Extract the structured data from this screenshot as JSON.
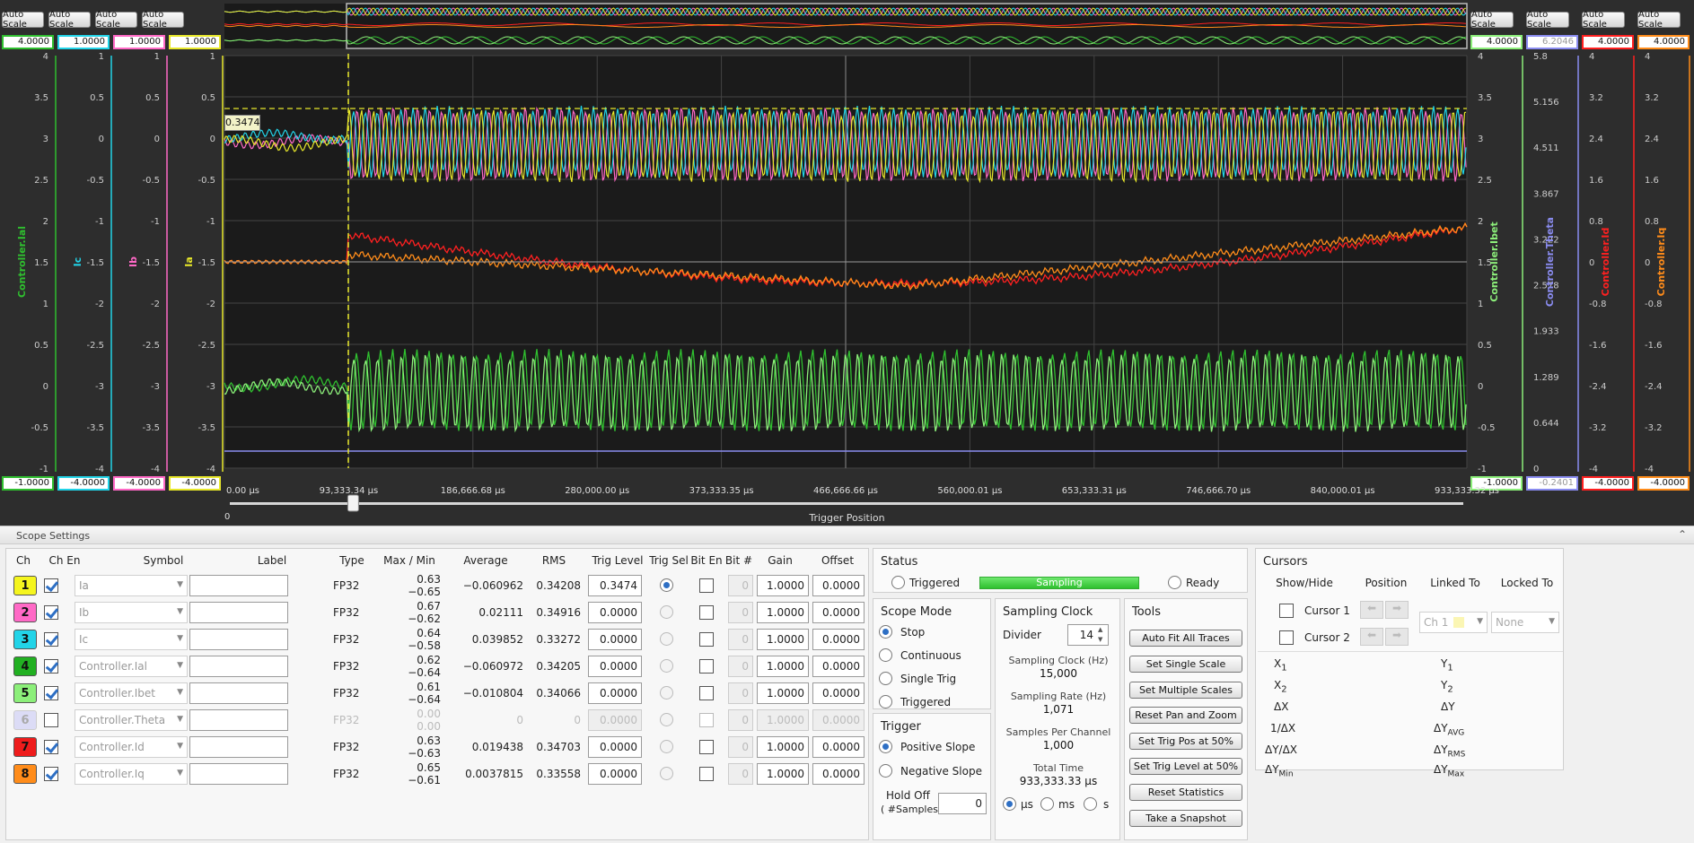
{
  "top": {
    "autoscale_label": "Auto Scale",
    "left_axes": [
      {
        "name": "Controller.Ial",
        "color": "#2fbf2f",
        "max": "4.0000",
        "min": "-1.0000",
        "ticks": [
          "4",
          "3.5",
          "3",
          "2.5",
          "2",
          "1.5",
          "1",
          "0.5",
          "0",
          "-0.5",
          "-1"
        ]
      },
      {
        "name": "Ic",
        "color": "#22d4e8",
        "max": "1.0000",
        "min": "-4.0000",
        "ticks": [
          "1",
          "0.5",
          "0",
          "-0.5",
          "-1",
          "-1.5",
          "-2",
          "-2.5",
          "-3",
          "-3.5",
          "-4"
        ]
      },
      {
        "name": "Ib",
        "color": "#ff69c6",
        "max": "1.0000",
        "min": "-4.0000",
        "ticks": [
          "1",
          "0.5",
          "0",
          "-0.5",
          "-1",
          "-1.5",
          "-2",
          "-2.5",
          "-3",
          "-3.5",
          "-4"
        ]
      },
      {
        "name": "Ia",
        "color": "#e8e82a",
        "max": "1.0000",
        "min": "-4.0000",
        "ticks": [
          "1",
          "0.5",
          "0",
          "-0.5",
          "-1",
          "-1.5",
          "-2",
          "-2.5",
          "-3",
          "-3.5",
          "-4"
        ]
      }
    ],
    "right_axes": [
      {
        "name": "Controller.Ibet",
        "color": "#8cef7a",
        "max": "4.0000",
        "min": "-1.0000",
        "ticks": [
          "4",
          "3.5",
          "3",
          "2.5",
          "2",
          "1.5",
          "1",
          "0.5",
          "0",
          "-0.5",
          "-1"
        ]
      },
      {
        "name": "Controller.Theta",
        "color": "#8a8cf0",
        "max": "6.2046",
        "min": "-0.2401",
        "ticks": [
          "5.8",
          "5.156",
          "4.511",
          "3.867",
          "3.222",
          "2.578",
          "1.933",
          "1.289",
          "0.644",
          "0"
        ]
      },
      {
        "name": "Controller.Id",
        "color": "#ff2020",
        "max": "4.0000",
        "min": "-4.0000",
        "ticks": [
          "4",
          "3.2",
          "2.4",
          "1.6",
          "0.8",
          "0",
          "-0.8",
          "-1.6",
          "-2.4",
          "-3.2",
          "-4"
        ]
      },
      {
        "name": "Controller.Iq",
        "color": "#ff8c1a",
        "max": "4.0000",
        "min": "-4.0000",
        "ticks": [
          "4",
          "3.2",
          "2.4",
          "1.6",
          "0.8",
          "0",
          "-0.8",
          "-1.6",
          "-2.4",
          "-3.2",
          "-4"
        ]
      }
    ],
    "trigger_readout": "0.3474",
    "x_ticks": [
      "0.00  µs",
      "93,333.34  µs",
      "186,666.68  µs",
      "280,000.00  µs",
      "373,333.35  µs",
      "466,666.66  µs",
      "560,000.01  µs",
      "653,333.31  µs",
      "746,666.70  µs",
      "840,000.01  µs",
      "933,333.32  µs"
    ],
    "slider_min": "0",
    "slider_label": "Trigger Position",
    "trigger_position": 0.1
  },
  "panel": {
    "title": "Scope Settings",
    "headers": {
      "ch": "Ch",
      "chen": "Ch En",
      "symbol": "Symbol",
      "label": "Label",
      "type": "Type",
      "maxmin": "Max / Min",
      "avg": "Average",
      "rms": "RMS",
      "trig": "Trig Level",
      "trigsel": "Trig Sel",
      "biten": "Bit En",
      "bitnum": "Bit #",
      "gain": "Gain",
      "offset": "Offset"
    },
    "channels": [
      {
        "n": "1",
        "color": "#f5f51e",
        "en": true,
        "symbol": "Ia",
        "type": "FP32",
        "max": "0.63",
        "min": "−0.65",
        "avg": "−0.060962",
        "rms": "0.34208",
        "trig": "0.3474",
        "trigsel": true,
        "bit": "0",
        "gain": "1.0000",
        "offset": "0.0000"
      },
      {
        "n": "2",
        "color": "#ff69c6",
        "en": true,
        "symbol": "Ib",
        "type": "FP32",
        "max": "0.67",
        "min": "−0.62",
        "avg": "0.02111",
        "rms": "0.34916",
        "trig": "0.0000",
        "trigsel": false,
        "bit": "0",
        "gain": "1.0000",
        "offset": "0.0000"
      },
      {
        "n": "3",
        "color": "#22d4e8",
        "en": true,
        "symbol": "Ic",
        "type": "FP32",
        "max": "0.64",
        "min": "−0.58",
        "avg": "0.039852",
        "rms": "0.33272",
        "trig": "0.0000",
        "trigsel": false,
        "bit": "0",
        "gain": "1.0000",
        "offset": "0.0000"
      },
      {
        "n": "4",
        "color": "#22b022",
        "en": true,
        "symbol": "Controller.Ial",
        "type": "FP32",
        "max": "0.62",
        "min": "−0.64",
        "avg": "−0.060972",
        "rms": "0.34205",
        "trig": "0.0000",
        "trigsel": false,
        "bit": "0",
        "gain": "1.0000",
        "offset": "0.0000"
      },
      {
        "n": "5",
        "color": "#8cef7a",
        "en": true,
        "symbol": "Controller.Ibet",
        "type": "FP32",
        "max": "0.61",
        "min": "−0.64",
        "avg": "−0.010804",
        "rms": "0.34066",
        "trig": "0.0000",
        "trigsel": false,
        "bit": "0",
        "gain": "1.0000",
        "offset": "0.0000"
      },
      {
        "n": "6",
        "color": "#dcdcf6",
        "en": false,
        "symbol": "Controller.Theta",
        "type": "FP32",
        "max": "0.00",
        "min": "0.00",
        "avg": "0",
        "rms": "0",
        "trig": "0.0000",
        "trigsel": false,
        "bit": "0",
        "gain": "1.0000",
        "offset": "0.0000"
      },
      {
        "n": "7",
        "color": "#ee1c1c",
        "en": true,
        "symbol": "Controller.Id",
        "type": "FP32",
        "max": "0.63",
        "min": "−0.63",
        "avg": "0.019438",
        "rms": "0.34703",
        "trig": "0.0000",
        "trigsel": false,
        "bit": "0",
        "gain": "1.0000",
        "offset": "0.0000"
      },
      {
        "n": "8",
        "color": "#ff8c1a",
        "en": true,
        "symbol": "Controller.Iq",
        "type": "FP32",
        "max": "0.65",
        "min": "−0.61",
        "avg": "0.0037815",
        "rms": "0.33558",
        "trig": "0.0000",
        "trigsel": false,
        "bit": "0",
        "gain": "1.0000",
        "offset": "0.0000"
      }
    ],
    "status": {
      "title": "Status",
      "triggered": "Triggered",
      "sampling": "Sampling",
      "ready": "Ready"
    },
    "mode": {
      "title": "Scope Mode",
      "stop": "Stop",
      "continuous": "Continuous",
      "single": "Single Trig",
      "triggered": "Triggered"
    },
    "trigger": {
      "title": "Trigger",
      "pos": "Positive Slope",
      "neg": "Negative Slope",
      "holdoff1": "Hold Off",
      "holdoff2": "( #Samples )",
      "holdoff_val": "0"
    },
    "clock": {
      "title": "Sampling Clock",
      "divider_label": "Divider",
      "divider": "14",
      "clk_label": "Sampling Clock (Hz)",
      "clk": "15,000",
      "rate_label": "Sampling Rate (Hz)",
      "rate": "1,071",
      "spc_label": "Samples Per Channel",
      "spc": "1,000",
      "tt_label": "Total Time",
      "tt": "933,333.33 µs",
      "u1": "µs",
      "u2": "ms",
      "u3": "s"
    },
    "tools": {
      "title": "Tools",
      "b1": "Auto Fit All Traces",
      "b2": "Set Single Scale",
      "b3": "Set Multiple Scales",
      "b4": "Reset Pan and Zoom",
      "b5": "Set Trig Pos at 50%",
      "b6": "Set Trig Level at 50%",
      "b7": "Reset Statistics",
      "b8": "Take a Snapshot"
    },
    "cursors": {
      "title": "Cursors",
      "h_show": "Show/Hide",
      "h_pos": "Position",
      "h_link": "Linked To",
      "h_lock": "Locked To",
      "c1": "Cursor 1",
      "c2": "Cursor 2",
      "link": "Ch 1",
      "lock": "None",
      "x1": "X",
      "x1s": "1",
      "x2": "X",
      "x2s": "2",
      "dx": "ΔX",
      "inv": "1/ΔX",
      "dydx": "ΔY/ΔX",
      "dymin": "ΔY",
      "dymin_s": "Min",
      "y1": "Y",
      "y1s": "1",
      "y2": "Y",
      "y2s": "2",
      "dy": "ΔY",
      "dyavg": "ΔY",
      "dyavg_s": "AVG",
      "dyrms": "ΔY",
      "dyrms_s": "RMS",
      "dymax": "ΔY",
      "dymax_s": "Max"
    }
  }
}
